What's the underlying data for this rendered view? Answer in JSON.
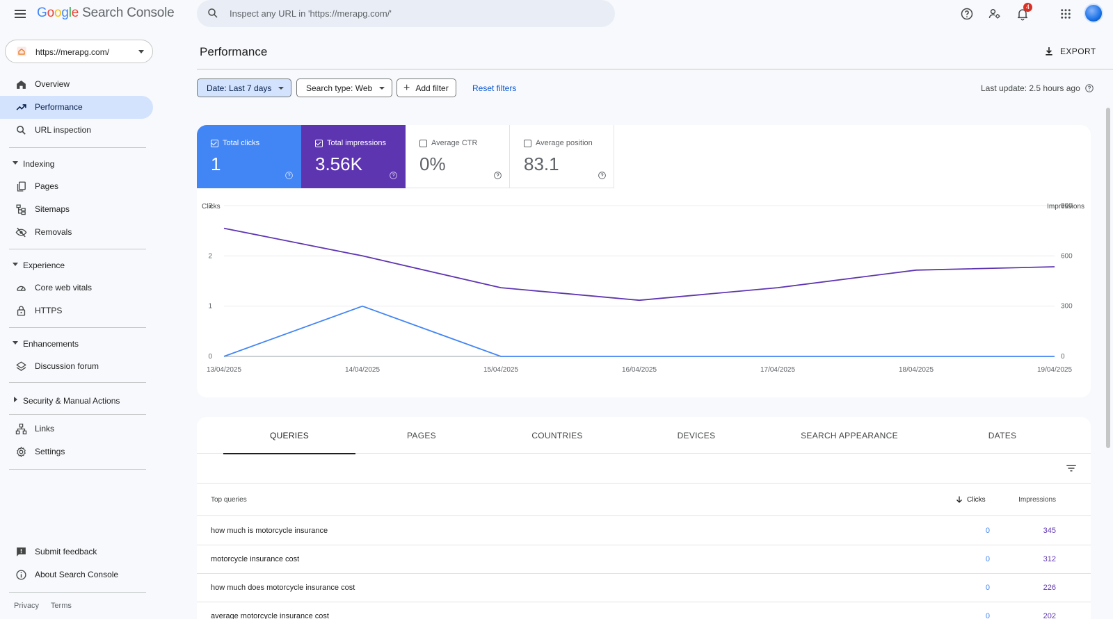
{
  "header": {
    "logo_letters": [
      "G",
      "o",
      "o",
      "g",
      "l",
      "e"
    ],
    "product_name": "Search Console",
    "search_placeholder": "Inspect any URL in 'https://merapg.com/'",
    "notification_count": "4",
    "icons": [
      "menu-icon",
      "search-icon",
      "help-icon",
      "manage-users-icon",
      "bell-icon",
      "apps-icon",
      "avatar"
    ]
  },
  "sidebar": {
    "property": "https://merapg.com/",
    "main_items": [
      {
        "label": "Overview",
        "icon": "home-icon"
      },
      {
        "label": "Performance",
        "icon": "trending-icon",
        "active": true
      },
      {
        "label": "URL inspection",
        "icon": "search-icon"
      }
    ],
    "sections": {
      "indexing": {
        "label": "Indexing",
        "items": [
          {
            "label": "Pages",
            "icon": "pages-icon"
          },
          {
            "label": "Sitemaps",
            "icon": "sitemap-icon"
          },
          {
            "label": "Removals",
            "icon": "eye-off-icon"
          }
        ]
      },
      "experience": {
        "label": "Experience",
        "items": [
          {
            "label": "Core web vitals",
            "icon": "gauge-icon"
          },
          {
            "label": "HTTPS",
            "icon": "lock-icon"
          }
        ]
      },
      "enhancements": {
        "label": "Enhancements",
        "items": [
          {
            "label": "Discussion forum",
            "icon": "layers-icon"
          }
        ]
      },
      "security": {
        "label": "Security & Manual Actions"
      }
    },
    "bottom_items": [
      {
        "label": "Links",
        "icon": "links-icon"
      },
      {
        "label": "Settings",
        "icon": "gear-icon"
      }
    ],
    "footer_items": [
      {
        "label": "Submit feedback",
        "icon": "feedback-icon"
      },
      {
        "label": "About Search Console",
        "icon": "info-icon"
      }
    ],
    "legal": {
      "privacy": "Privacy",
      "terms": "Terms"
    }
  },
  "main": {
    "title": "Performance",
    "export_label": "EXPORT",
    "filters": {
      "date": "Date: Last 7 days",
      "search_type": "Search type: Web",
      "add_filter": "Add filter",
      "reset": "Reset filters"
    },
    "last_update": "Last update: 2.5 hours ago",
    "metrics": {
      "clicks": {
        "label": "Total clicks",
        "value": "1",
        "checked": true,
        "color": "#4285f4"
      },
      "impressions": {
        "label": "Total impressions",
        "value": "3.56K",
        "checked": true,
        "color": "#5e35b1"
      },
      "ctr": {
        "label": "Average CTR",
        "value": "0%",
        "checked": false
      },
      "position": {
        "label": "Average position",
        "value": "83.1",
        "checked": false
      }
    },
    "tabs": [
      "QUERIES",
      "PAGES",
      "COUNTRIES",
      "DEVICES",
      "SEARCH APPEARANCE",
      "DATES"
    ],
    "active_tab": "QUERIES",
    "table": {
      "headers": {
        "query": "Top queries",
        "clicks": "Clicks",
        "impressions": "Impressions"
      },
      "rows": [
        {
          "query": "how much is motorcycle insurance",
          "clicks": "0",
          "impressions": "345"
        },
        {
          "query": "motorcycle insurance cost",
          "clicks": "0",
          "impressions": "312"
        },
        {
          "query": "how much does motorcycle insurance cost",
          "clicks": "0",
          "impressions": "226"
        },
        {
          "query": "average motorcycle insurance cost",
          "clicks": "0",
          "impressions": "202"
        }
      ]
    }
  },
  "chart_data": {
    "type": "line",
    "x": [
      "13/04/2025",
      "14/04/2025",
      "15/04/2025",
      "16/04/2025",
      "17/04/2025",
      "18/04/2025",
      "19/04/2025"
    ],
    "series": [
      {
        "name": "Clicks",
        "axis": "left",
        "color": "#4285f4",
        "values": [
          0,
          1,
          0,
          0,
          0,
          0,
          0
        ]
      },
      {
        "name": "Impressions",
        "axis": "right",
        "color": "#5e35b1",
        "values": [
          765,
          600,
          410,
          335,
          410,
          515,
          535
        ]
      }
    ],
    "y_left": {
      "label": "Clicks",
      "ticks": [
        0,
        1,
        2,
        3
      ],
      "range": [
        0,
        3
      ]
    },
    "y_right": {
      "label": "Impressions",
      "ticks": [
        0,
        300,
        600,
        900
      ],
      "range": [
        0,
        900
      ]
    },
    "grid": true
  }
}
